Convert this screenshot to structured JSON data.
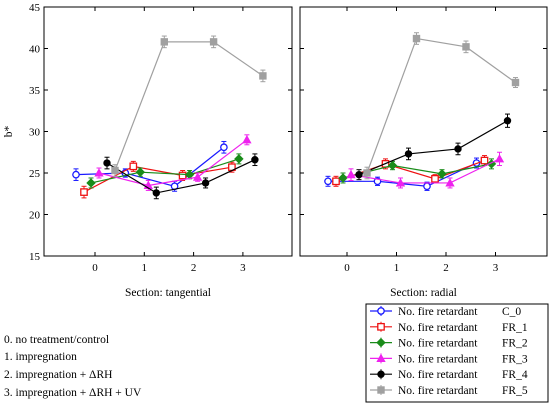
{
  "chart_data": {
    "type": "line",
    "ylabel": "b*",
    "ylim": [
      15,
      45
    ],
    "yticks": [
      15,
      20,
      25,
      30,
      35,
      40,
      45
    ],
    "xticks": [
      0,
      1,
      2,
      3
    ],
    "x": [
      0,
      1,
      2,
      3
    ],
    "grid": false,
    "legend_position": "bottom-right",
    "legend_series_labels": [
      "No. fire retardant",
      "No. fire retardant",
      "No. fire retardant",
      "No. fire retardant",
      "No. fire retardant",
      "No. fire retardant"
    ],
    "series": [
      {
        "name": "C_0",
        "color": "#1a1aff",
        "marker": "circle-open"
      },
      {
        "name": "FR_1",
        "color": "#ee1111",
        "marker": "square-open"
      },
      {
        "name": "FR_2",
        "color": "#1a8c1a",
        "marker": "diamond"
      },
      {
        "name": "FR_3",
        "color": "#ee22ee",
        "marker": "triangle"
      },
      {
        "name": "FR_4",
        "color": "#000000",
        "marker": "circle-filled"
      },
      {
        "name": "FR_5",
        "color": "#a0a0a0",
        "marker": "square-filled"
      }
    ],
    "panels": [
      {
        "xlabel": "Section: tangential",
        "series": [
          {
            "name": "C_0",
            "values": [
              24.8,
              25.0,
              23.4,
              28.1
            ],
            "errors": [
              0.7,
              0.5,
              0.6,
              0.7
            ]
          },
          {
            "name": "FR_1",
            "values": [
              22.7,
              25.8,
              24.7,
              25.7
            ],
            "errors": [
              0.7,
              0.6,
              0.6,
              0.6
            ]
          },
          {
            "name": "FR_2",
            "values": [
              23.8,
              25.1,
              24.8,
              26.7
            ],
            "errors": [
              0.6,
              0.5,
              0.5,
              0.6
            ]
          },
          {
            "name": "FR_3",
            "values": [
              25.0,
              23.5,
              24.5,
              29.0
            ],
            "errors": [
              0.6,
              0.6,
              0.5,
              0.6
            ]
          },
          {
            "name": "FR_4",
            "values": [
              26.2,
              22.6,
              23.8,
              26.6
            ],
            "errors": [
              0.7,
              0.7,
              0.6,
              0.7
            ]
          },
          {
            "name": "FR_5",
            "values": [
              25.3,
              40.8,
              40.8,
              36.7
            ],
            "errors": [
              0.7,
              0.7,
              0.7,
              0.7
            ]
          }
        ]
      },
      {
        "xlabel": "Section: radial",
        "series": [
          {
            "name": "C_0",
            "values": [
              24.0,
              24.0,
              23.4,
              26.2
            ],
            "errors": [
              0.6,
              0.5,
              0.5,
              0.6
            ]
          },
          {
            "name": "FR_1",
            "values": [
              24.0,
              26.1,
              24.3,
              26.5
            ],
            "errors": [
              0.6,
              0.6,
              0.5,
              0.6
            ]
          },
          {
            "name": "FR_2",
            "values": [
              24.4,
              25.9,
              24.9,
              26.1
            ],
            "errors": [
              0.6,
              0.5,
              0.5,
              0.6
            ]
          },
          {
            "name": "FR_3",
            "values": [
              24.8,
              23.8,
              23.8,
              26.7
            ],
            "errors": [
              0.7,
              0.6,
              0.6,
              0.8
            ]
          },
          {
            "name": "FR_4",
            "values": [
              24.8,
              27.3,
              27.9,
              31.3
            ],
            "errors": [
              0.6,
              0.7,
              0.7,
              0.8
            ]
          },
          {
            "name": "FR_5",
            "values": [
              25.0,
              41.2,
              40.2,
              35.9
            ],
            "errors": [
              0.7,
              0.7,
              0.7,
              0.6
            ]
          }
        ]
      }
    ]
  },
  "notes": [
    "0. no treatment/control",
    "1. impregnation",
    "2. impregnation + ΔRH",
    "3. impregnation + ΔRH + UV"
  ]
}
